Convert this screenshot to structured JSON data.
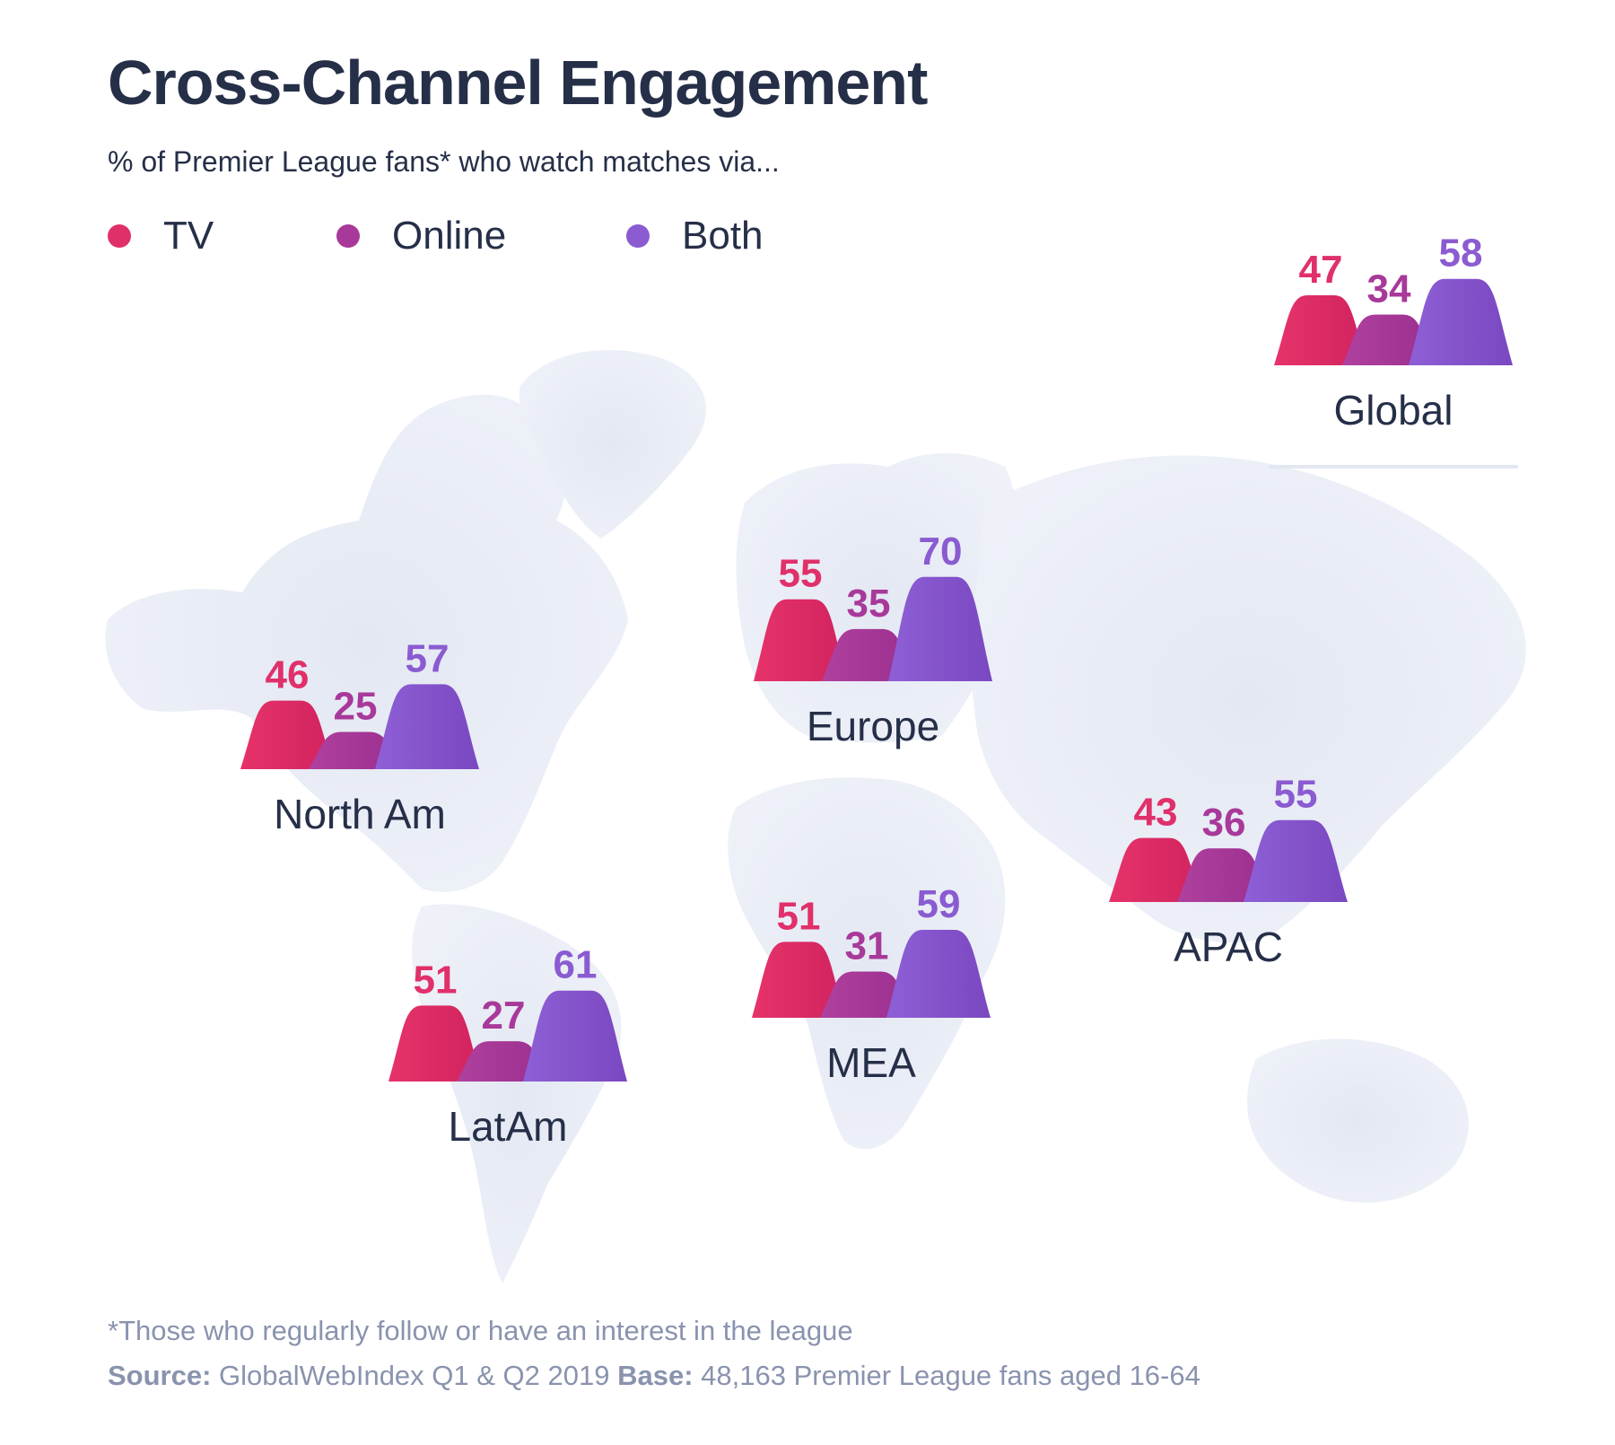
{
  "header": {
    "title": "Cross-Channel Engagement",
    "subtitle": "% of Premier League fans* who watch matches via..."
  },
  "legend": [
    {
      "label": "TV",
      "color": "#e0306a"
    },
    {
      "label": "Online",
      "color": "#a8399a"
    },
    {
      "label": "Both",
      "color": "#8a5bd1"
    }
  ],
  "footer": {
    "footnote": "*Those who regularly follow or have an interest in the league",
    "source_label": "Source:",
    "source_value": "GlobalWebIndex Q1 & Q2 2019",
    "base_label": "Base:",
    "base_value": "48,163 Premier League fans aged 16-64"
  },
  "colors": {
    "title": "#262f48",
    "muted": "#8a93ae",
    "map": "#e9ecf5",
    "divider": "#e2e7f1"
  },
  "chart_data": {
    "type": "bar",
    "title": "Cross-Channel Engagement",
    "subtitle": "% of Premier League fans* who watch matches via...",
    "unit": "%",
    "series_names": [
      "TV",
      "Online",
      "Both"
    ],
    "categories": [
      "Global",
      "North Am",
      "Europe",
      "APAC",
      "MEA",
      "LatAm"
    ],
    "series": [
      {
        "name": "TV",
        "values": [
          47,
          46,
          55,
          43,
          51,
          51
        ]
      },
      {
        "name": "Online",
        "values": [
          34,
          25,
          35,
          36,
          31,
          27
        ]
      },
      {
        "name": "Both",
        "values": [
          58,
          57,
          70,
          55,
          59,
          61
        ]
      }
    ],
    "legend_position": "top-left",
    "grid": false
  }
}
